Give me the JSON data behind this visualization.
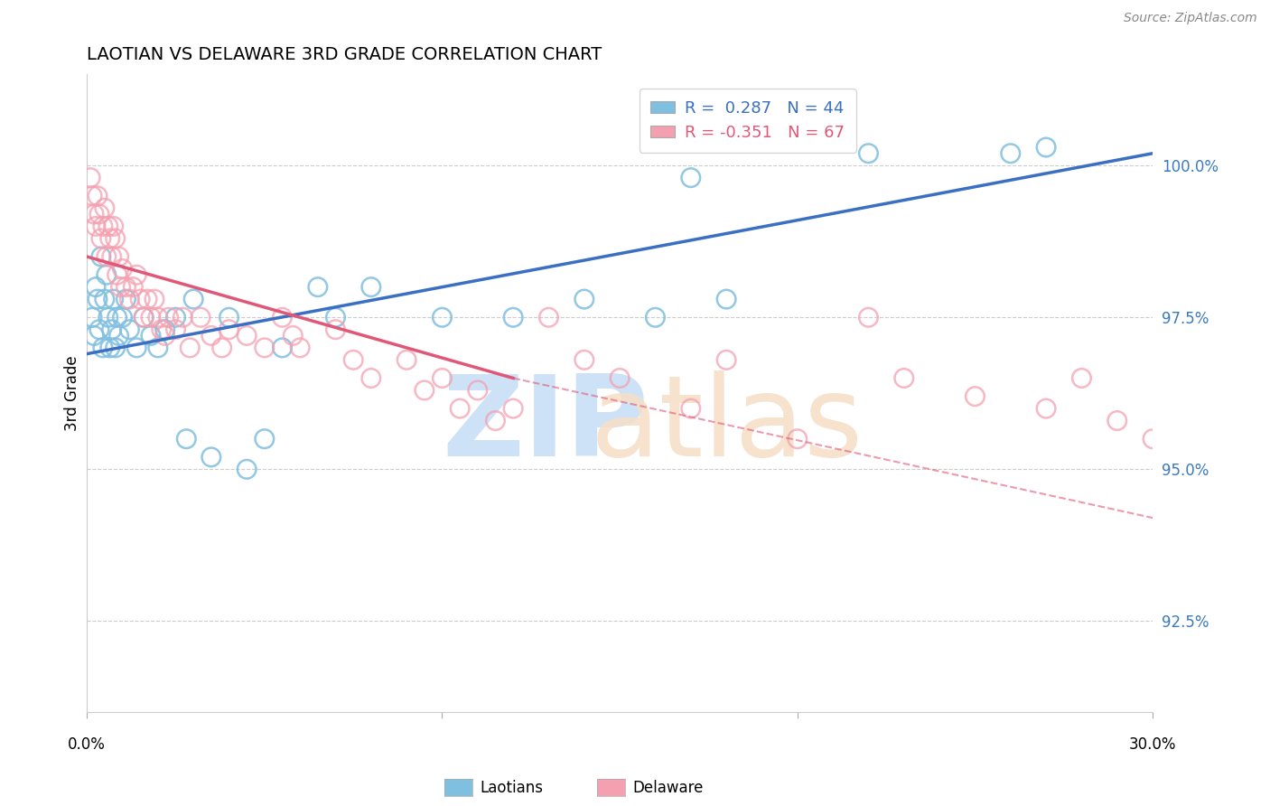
{
  "title": "LAOTIAN VS DELAWARE 3RD GRADE CORRELATION CHART",
  "source_text": "Source: ZipAtlas.com",
  "ylabel": "3rd Grade",
  "xlim": [
    0.0,
    30.0
  ],
  "ylim": [
    91.0,
    101.5
  ],
  "yticks": [
    92.5,
    95.0,
    97.5,
    100.0
  ],
  "ytick_labels": [
    "92.5%",
    "95.0%",
    "97.5%",
    "100.0%"
  ],
  "blue_R": 0.287,
  "blue_N": 44,
  "pink_R": -0.351,
  "pink_N": 67,
  "blue_color": "#7fbfdf",
  "pink_color": "#f4a0b0",
  "blue_line_color": "#3a6fc4",
  "pink_line_color": "#e05878",
  "pink_solid_end_x": 12.0,
  "blue_scatter_x": [
    0.15,
    0.2,
    0.25,
    0.3,
    0.35,
    0.4,
    0.45,
    0.5,
    0.55,
    0.6,
    0.65,
    0.7,
    0.75,
    0.8,
    0.85,
    0.9,
    1.0,
    1.1,
    1.2,
    1.4,
    1.6,
    1.8,
    2.0,
    2.2,
    2.5,
    2.8,
    3.0,
    3.5,
    4.0,
    4.5,
    5.0,
    5.5,
    6.5,
    7.0,
    8.0,
    10.0,
    12.0,
    14.0,
    16.0,
    17.0,
    18.0,
    22.0,
    26.0,
    27.0
  ],
  "blue_scatter_y": [
    97.5,
    97.2,
    98.0,
    97.8,
    97.3,
    98.5,
    97.0,
    97.8,
    98.2,
    97.5,
    97.0,
    97.3,
    97.8,
    97.0,
    97.5,
    97.2,
    97.5,
    97.8,
    97.3,
    97.0,
    97.5,
    97.2,
    97.0,
    97.3,
    97.5,
    95.5,
    97.8,
    95.2,
    97.5,
    95.0,
    95.5,
    97.0,
    98.0,
    97.5,
    98.0,
    97.5,
    97.5,
    97.8,
    97.5,
    99.8,
    97.8,
    100.2,
    100.2,
    100.3
  ],
  "pink_scatter_x": [
    0.1,
    0.15,
    0.2,
    0.25,
    0.3,
    0.35,
    0.4,
    0.45,
    0.5,
    0.55,
    0.6,
    0.65,
    0.7,
    0.75,
    0.8,
    0.85,
    0.9,
    0.95,
    1.0,
    1.1,
    1.2,
    1.3,
    1.4,
    1.5,
    1.6,
    1.7,
    1.8,
    1.9,
    2.0,
    2.1,
    2.2,
    2.3,
    2.5,
    2.7,
    2.9,
    3.2,
    3.5,
    3.8,
    4.0,
    4.5,
    5.0,
    5.5,
    6.0,
    7.0,
    8.0,
    9.0,
    10.0,
    11.0,
    12.0,
    13.0,
    14.0,
    17.0,
    18.0,
    20.0,
    22.0,
    23.0,
    25.0,
    27.0,
    28.0,
    29.0,
    30.0,
    10.5,
    15.0,
    5.8,
    7.5,
    9.5,
    11.5
  ],
  "pink_scatter_y": [
    99.8,
    99.5,
    99.2,
    99.0,
    99.5,
    99.2,
    98.8,
    99.0,
    99.3,
    98.5,
    99.0,
    98.8,
    98.5,
    99.0,
    98.8,
    98.2,
    98.5,
    98.0,
    98.3,
    98.0,
    97.8,
    98.0,
    98.2,
    97.8,
    97.5,
    97.8,
    97.5,
    97.8,
    97.5,
    97.3,
    97.2,
    97.5,
    97.3,
    97.5,
    97.0,
    97.5,
    97.2,
    97.0,
    97.3,
    97.2,
    97.0,
    97.5,
    97.0,
    97.3,
    96.5,
    96.8,
    96.5,
    96.3,
    96.0,
    97.5,
    96.8,
    96.0,
    96.8,
    95.5,
    97.5,
    96.5,
    96.2,
    96.0,
    96.5,
    95.8,
    95.5,
    96.0,
    96.5,
    97.2,
    96.8,
    96.3,
    95.8
  ],
  "watermark_zip_color": "#c8dff5",
  "watermark_atlas_color": "#f5dfc8",
  "background_color": "#ffffff",
  "grid_color": "#cccccc",
  "ytick_color": "#3a7abf",
  "title_fontsize": 14,
  "label_fontsize": 12,
  "legend_fontsize": 13
}
